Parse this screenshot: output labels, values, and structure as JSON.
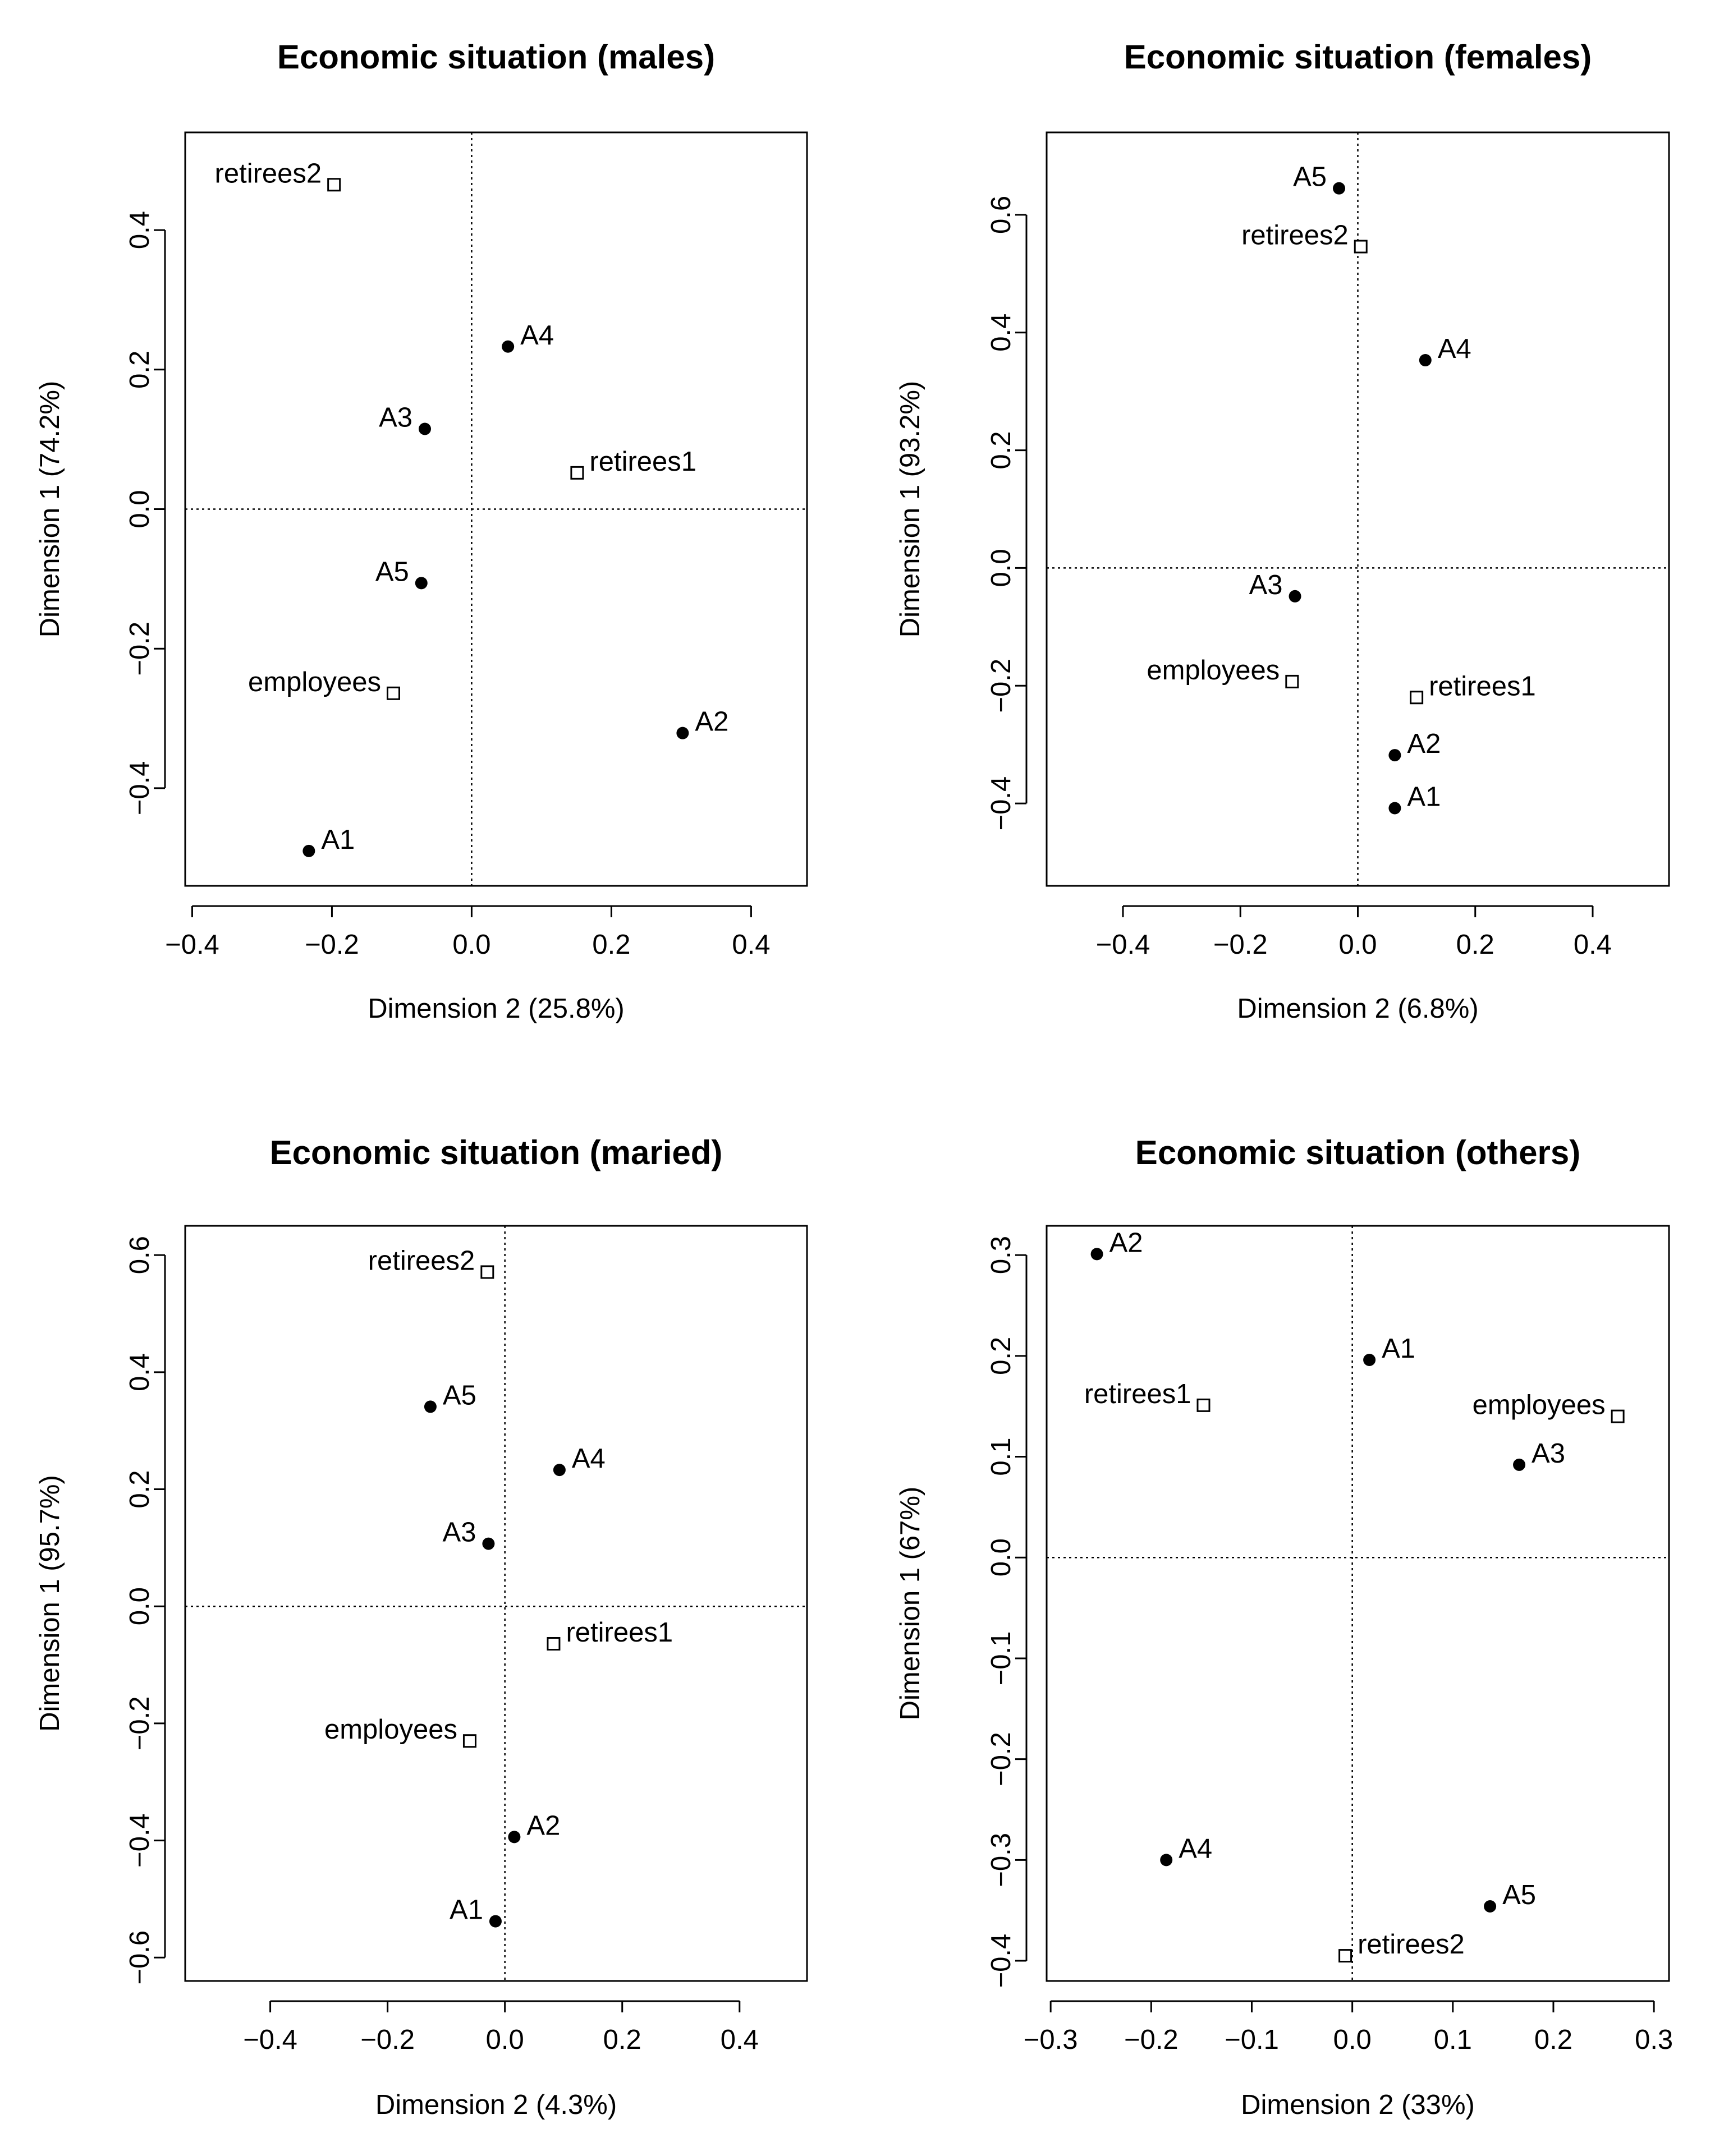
{
  "chart_data": [
    {
      "type": "scatter",
      "title": "Economic situation (males)",
      "xlabel": "Dimension 2 (25.8%)",
      "ylabel": "Dimension 1 (74.2%)",
      "xlim": [
        -0.41,
        0.48
      ],
      "ylim": [
        -0.54,
        0.54
      ],
      "xticks": [
        -0.4,
        -0.2,
        0.0,
        0.2,
        0.4
      ],
      "yticks": [
        -0.4,
        -0.2,
        0.0,
        0.2,
        0.4
      ],
      "xtick_labels": [
        "−0.4",
        "−0.2",
        "0.0",
        "0.2",
        "0.4"
      ],
      "ytick_labels": [
        "−0.4",
        "−0.2",
        "0.0",
        "0.2",
        "0.4"
      ],
      "points": [
        {
          "label": "retirees2",
          "x": -0.197,
          "y": 0.465,
          "marker": "square",
          "label_side": "left"
        },
        {
          "label": "A4",
          "x": 0.052,
          "y": 0.233,
          "marker": "dot",
          "label_side": "right"
        },
        {
          "label": "A3",
          "x": -0.067,
          "y": 0.115,
          "marker": "dot",
          "label_side": "left"
        },
        {
          "label": "retirees1",
          "x": 0.151,
          "y": 0.052,
          "marker": "square",
          "label_side": "right"
        },
        {
          "label": "A5",
          "x": -0.072,
          "y": -0.106,
          "marker": "dot",
          "label_side": "left"
        },
        {
          "label": "employees",
          "x": -0.112,
          "y": -0.264,
          "marker": "square",
          "label_side": "left"
        },
        {
          "label": "A2",
          "x": 0.302,
          "y": -0.321,
          "marker": "dot",
          "label_side": "right"
        },
        {
          "label": "A1",
          "x": -0.233,
          "y": -0.49,
          "marker": "dot",
          "label_side": "right"
        }
      ]
    },
    {
      "type": "scatter",
      "title": "Economic situation (females)",
      "xlabel": "Dimension 2 (6.8%)",
      "ylabel": "Dimension 1 (93.2%)",
      "xlim": [
        -0.53,
        0.53
      ],
      "ylim": [
        -0.54,
        0.74
      ],
      "xticks": [
        -0.4,
        -0.2,
        0.0,
        0.2,
        0.4
      ],
      "yticks": [
        -0.4,
        -0.2,
        0.0,
        0.2,
        0.4,
        0.6
      ],
      "xtick_labels": [
        "−0.4",
        "−0.2",
        "0.0",
        "0.2",
        "0.4"
      ],
      "ytick_labels": [
        "−0.4",
        "−0.2",
        "0.0",
        "0.2",
        "0.4",
        "0.6"
      ],
      "points": [
        {
          "label": "A5",
          "x": -0.032,
          "y": 0.645,
          "marker": "dot",
          "label_side": "left"
        },
        {
          "label": "retirees2",
          "x": 0.005,
          "y": 0.546,
          "marker": "square",
          "label_side": "left"
        },
        {
          "label": "A4",
          "x": 0.115,
          "y": 0.353,
          "marker": "dot",
          "label_side": "right"
        },
        {
          "label": "A3",
          "x": -0.107,
          "y": -0.048,
          "marker": "dot",
          "label_side": "left"
        },
        {
          "label": "employees",
          "x": -0.112,
          "y": -0.193,
          "marker": "square",
          "label_side": "left"
        },
        {
          "label": "retirees1",
          "x": 0.1,
          "y": -0.22,
          "marker": "square",
          "label_side": "right"
        },
        {
          "label": "A2",
          "x": 0.063,
          "y": -0.318,
          "marker": "dot",
          "label_side": "right"
        },
        {
          "label": "A1",
          "x": 0.063,
          "y": -0.408,
          "marker": "dot",
          "label_side": "right"
        }
      ]
    },
    {
      "type": "scatter",
      "title": "Economic situation (maried)",
      "xlabel": "Dimension 2 (4.3%)",
      "ylabel": "Dimension 1 (95.7%)",
      "xlim": [
        -0.545,
        0.515
      ],
      "ylim": [
        -0.64,
        0.65
      ],
      "xticks": [
        -0.4,
        -0.2,
        0.0,
        0.2,
        0.4
      ],
      "yticks": [
        -0.6,
        -0.4,
        -0.2,
        0.0,
        0.2,
        0.4,
        0.6
      ],
      "xtick_labels": [
        "−0.4",
        "−0.2",
        "0.0",
        "0.2",
        "0.4"
      ],
      "ytick_labels": [
        "−0.6",
        "−0.4",
        "−0.2",
        "0.0",
        "0.2",
        "0.4",
        "0.6"
      ],
      "points": [
        {
          "label": "retirees2",
          "x": -0.03,
          "y": 0.571,
          "marker": "square",
          "label_side": "left"
        },
        {
          "label": "A5",
          "x": -0.127,
          "y": 0.341,
          "marker": "dot",
          "label_side": "right"
        },
        {
          "label": "A4",
          "x": 0.093,
          "y": 0.233,
          "marker": "dot",
          "label_side": "right"
        },
        {
          "label": "A3",
          "x": -0.028,
          "y": 0.107,
          "marker": "dot",
          "label_side": "left"
        },
        {
          "label": "retirees1",
          "x": 0.083,
          "y": -0.064,
          "marker": "square",
          "label_side": "right"
        },
        {
          "label": "employees",
          "x": -0.06,
          "y": -0.23,
          "marker": "square",
          "label_side": "left"
        },
        {
          "label": "A2",
          "x": 0.016,
          "y": -0.394,
          "marker": "dot",
          "label_side": "right"
        },
        {
          "label": "A1",
          "x": -0.016,
          "y": -0.538,
          "marker": "dot",
          "label_side": "left"
        }
      ]
    },
    {
      "type": "scatter",
      "title": "Economic situation (others)",
      "xlabel": "Dimension 2 (33%)",
      "ylabel": "Dimension 1 (67%)",
      "xlim": [
        -0.304,
        0.315
      ],
      "ylim": [
        -0.42,
        0.329
      ],
      "xticks": [
        -0.3,
        -0.2,
        -0.1,
        0.0,
        0.1,
        0.2,
        0.3
      ],
      "yticks": [
        -0.4,
        -0.3,
        -0.2,
        -0.1,
        0.0,
        0.1,
        0.2,
        0.3
      ],
      "xtick_labels": [
        "−0.3",
        "−0.2",
        "−0.1",
        "0.0",
        "0.1",
        "0.2",
        "0.3"
      ],
      "ytick_labels": [
        "−0.4",
        "−0.3",
        "−0.2",
        "−0.1",
        "0.0",
        "0.1",
        "0.2",
        "0.3"
      ],
      "points": [
        {
          "label": "A2",
          "x": -0.254,
          "y": 0.301,
          "marker": "dot",
          "label_side": "right"
        },
        {
          "label": "A1",
          "x": 0.017,
          "y": 0.196,
          "marker": "dot",
          "label_side": "right"
        },
        {
          "label": "retirees1",
          "x": -0.148,
          "y": 0.151,
          "marker": "square",
          "label_side": "left"
        },
        {
          "label": "employees",
          "x": 0.264,
          "y": 0.14,
          "marker": "square",
          "label_side": "left"
        },
        {
          "label": "A3",
          "x": 0.166,
          "y": 0.092,
          "marker": "dot",
          "label_side": "right"
        },
        {
          "label": "A4",
          "x": -0.185,
          "y": -0.3,
          "marker": "dot",
          "label_side": "right"
        },
        {
          "label": "A5",
          "x": 0.137,
          "y": -0.346,
          "marker": "dot",
          "label_side": "right"
        },
        {
          "label": "retirees2",
          "x": -0.007,
          "y": -0.395,
          "marker": "square",
          "label_side": "right"
        }
      ]
    }
  ]
}
